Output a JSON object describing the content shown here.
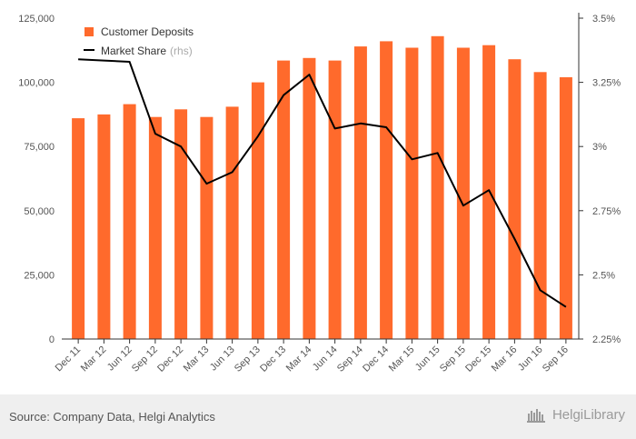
{
  "chart_data": {
    "type": "bar",
    "categories": [
      "Dec 11",
      "Mar 12",
      "Jun 12",
      "Sep 12",
      "Dec 12",
      "Mar 13",
      "Jun 13",
      "Sep 13",
      "Dec 13",
      "Mar 14",
      "Jun 14",
      "Sep 14",
      "Dec 14",
      "Mar 15",
      "Jun 15",
      "Sep 15",
      "Dec 15",
      "Mar 16",
      "Jun 16",
      "Sep 16"
    ],
    "series": [
      {
        "name": "Customer Deposits",
        "type": "bar",
        "axis": "left",
        "color": "#ff6a2c",
        "values": [
          86000,
          87500,
          91500,
          86500,
          89500,
          86500,
          90500,
          100000,
          108500,
          109500,
          108500,
          114000,
          116000,
          113500,
          118000,
          113500,
          114500,
          109000,
          104000,
          102000
        ]
      },
      {
        "name": "Market Share",
        "legend_suffix": "(rhs)",
        "type": "line",
        "axis": "right",
        "color": "#000000",
        "values": [
          3.34,
          3.335,
          3.33,
          3.05,
          3.0,
          2.855,
          2.9,
          3.04,
          3.2,
          3.28,
          3.07,
          3.09,
          3.075,
          2.95,
          2.975,
          2.77,
          2.83,
          2.64,
          2.44,
          2.375
        ]
      }
    ],
    "ylim": [
      0,
      125000
    ],
    "y_ticks": [
      0,
      25000,
      50000,
      75000,
      100000,
      125000
    ],
    "y_tick_labels": [
      "0",
      "25,000",
      "50,000",
      "75,000",
      "100,000",
      "125,000"
    ],
    "y2lim": [
      2.25,
      3.5
    ],
    "y2_ticks": [
      2.25,
      2.5,
      2.75,
      3.0,
      3.25,
      3.5
    ],
    "y2_tick_labels": [
      "2.25%",
      "2.5%",
      "2.75%",
      "3%",
      "3.25%",
      "3.5%"
    ],
    "legend_position": "top-left",
    "grid": false
  },
  "footer": {
    "source": "Source: Company Data, Helgi Analytics",
    "brand": "HelgiLibrary"
  }
}
